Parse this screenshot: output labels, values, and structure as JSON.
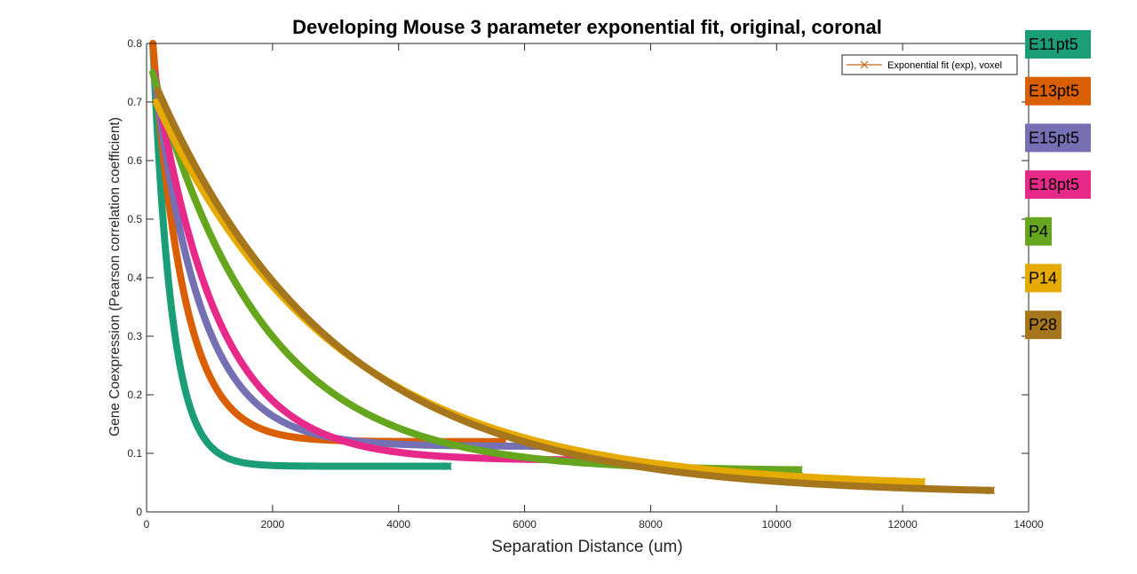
{
  "chart_data": {
    "type": "line",
    "title": "Developing Mouse 3 parameter exponential fit, original, coronal",
    "xlabel": "Separation Distance (um)",
    "ylabel": "Gene Coexpression (Pearson correlation coefficient)",
    "xlim": [
      0,
      14000
    ],
    "ylim": [
      0,
      0.8
    ],
    "x_ticks": [
      0,
      2000,
      4000,
      6000,
      8000,
      10000,
      12000,
      14000
    ],
    "x_tick_labels": [
      "0",
      "2000",
      "4000",
      "6000",
      "8000",
      "10000",
      "12000",
      "14000"
    ],
    "y_ticks": [
      0,
      0.1,
      0.2,
      0.3,
      0.4,
      0.5,
      0.6,
      0.7,
      0.8
    ],
    "y_tick_labels": [
      "0",
      "0.1",
      "0.2",
      "0.3",
      "0.4",
      "0.5",
      "0.6",
      "0.7",
      "0.8"
    ],
    "grid": false,
    "legend": {
      "placement": "top-right",
      "entries": [
        {
          "label": "Exponential fit (exp), voxel",
          "color": "#C46A1B",
          "marker": "x"
        }
      ]
    },
    "series": [
      {
        "name": "E11pt5",
        "color": "#1B9E77",
        "x_start": 100,
        "x_end": 4780,
        "y_start": 0.8,
        "y_asymptote": 0.078,
        "decay_length": 300
      },
      {
        "name": "E13pt5",
        "color": "#D95F02",
        "x_start": 100,
        "x_end": 5650,
        "y_start": 0.8,
        "y_asymptote": 0.12,
        "decay_length": 500
      },
      {
        "name": "E15pt5",
        "color": "#7570B3",
        "x_start": 120,
        "x_end": 6300,
        "y_start": 0.75,
        "y_asymptote": 0.112,
        "decay_length": 750
      },
      {
        "name": "E18pt5",
        "color": "#E7298A",
        "x_start": 130,
        "x_end": 7300,
        "y_start": 0.75,
        "y_asymptote": 0.088,
        "decay_length": 1000
      },
      {
        "name": "P4",
        "color": "#66A61E",
        "x_start": 100,
        "x_end": 10350,
        "y_start": 0.75,
        "y_asymptote": 0.07,
        "decay_length": 1750
      },
      {
        "name": "P14",
        "color": "#E6AB02",
        "x_start": 150,
        "x_end": 12300,
        "y_start": 0.7,
        "y_asymptote": 0.042,
        "decay_length": 2850
      },
      {
        "name": "P28",
        "color": "#A6761D",
        "x_start": 180,
        "x_end": 13400,
        "y_start": 0.72,
        "y_asymptote": 0.03,
        "decay_length": 2850
      }
    ]
  }
}
